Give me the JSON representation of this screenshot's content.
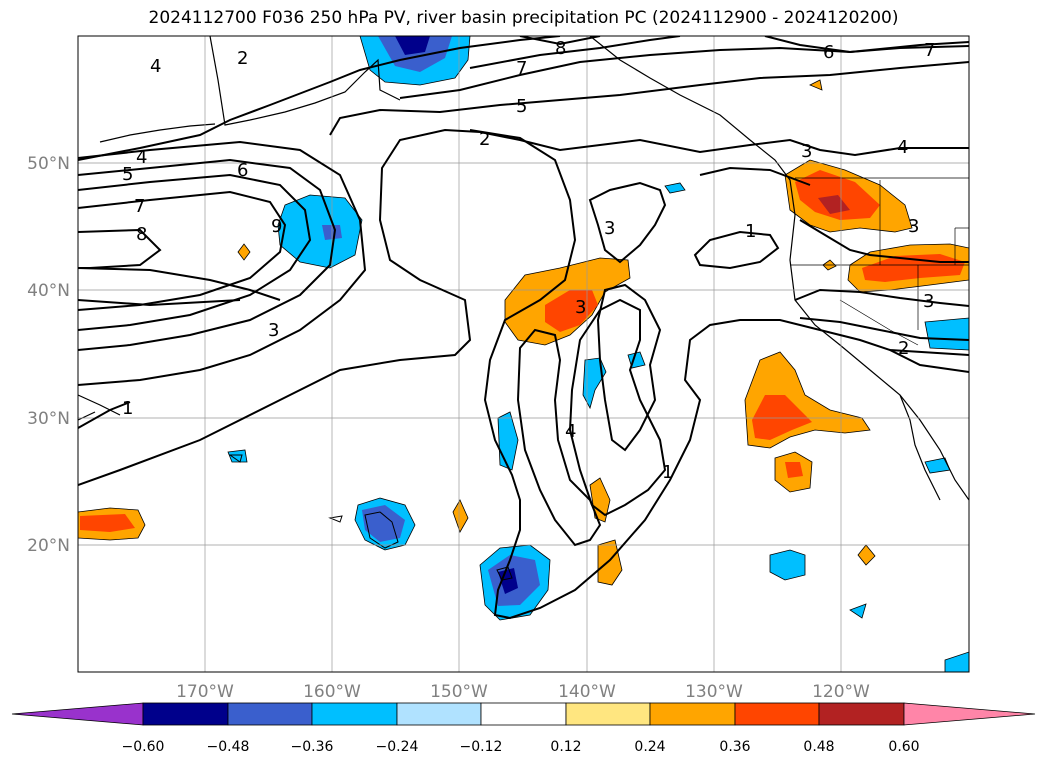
{
  "title": "2024112700 F036 250 hPa PV, river basin precipitation PC (2024112900 - 2024120200)",
  "map": {
    "lon_range": [
      180,
      110
    ],
    "lat_range": [
      10,
      60
    ],
    "lon_ticks": [
      "170°W",
      "160°W",
      "150°W",
      "140°W",
      "130°W",
      "120°W"
    ],
    "lat_ticks": [
      "20°N",
      "30°N",
      "40°N",
      "50°N"
    ],
    "axis_color": "#808080",
    "grid": true
  },
  "colorbar": {
    "tick_labels": [
      "−0.60",
      "−0.48",
      "−0.36",
      "−0.24",
      "−0.12",
      "0.12",
      "0.24",
      "0.36",
      "0.48",
      "0.60"
    ],
    "colors": [
      "#9932cc",
      "#00008b",
      "#3a5fcd",
      "#00bfff",
      "#b0e2ff",
      "#ffffff",
      "#ffe680",
      "#ffa500",
      "#ff4500",
      "#b22222",
      "#ff85a8"
    ]
  },
  "pv_contour_labels": [
    "4",
    "2",
    "8",
    "7",
    "6",
    "7",
    "5",
    "2",
    "4",
    "5",
    "6",
    "7",
    "8",
    "9",
    "3",
    "3",
    "1",
    "3",
    "4",
    "3",
    "1",
    "3",
    "2",
    "3",
    "1",
    "4"
  ],
  "pc_legend_levels": [
    "-0.60",
    "-0.48",
    "-0.36",
    "-0.24",
    "-0.12",
    "0.12",
    "0.24",
    "0.36",
    "0.48",
    "0.60"
  ]
}
